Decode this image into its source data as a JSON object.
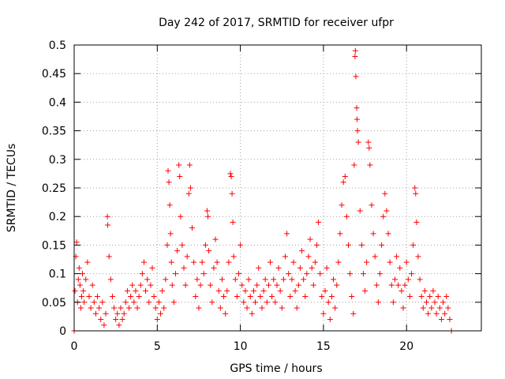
{
  "chart_data": {
    "type": "scatter",
    "title": "Day 242 of 2017, SRMTID for receiver ufpr",
    "xlabel": "GPS time / hours",
    "ylabel": "SRMTID / TECUs",
    "xlim": [
      0,
      24.5
    ],
    "ylim": [
      0,
      0.5
    ],
    "x_ticks": [
      0,
      5,
      10,
      15,
      20
    ],
    "x_tick_labels": [
      "0",
      "5",
      "10",
      "15",
      "20"
    ],
    "y_ticks": [
      0,
      0.05,
      0.1,
      0.15,
      0.2,
      0.25,
      0.3,
      0.35,
      0.4,
      0.45,
      0.5
    ],
    "y_tick_labels": [
      "0",
      "0.05",
      "0.1",
      "0.15",
      "0.2",
      "0.25",
      "0.3",
      "0.35",
      "0.4",
      "0.45",
      "0.5"
    ],
    "grid": true,
    "marker": "+",
    "marker_color": "#ff0000",
    "series": [
      {
        "name": "SRMTID",
        "points": [
          [
            0.0,
            0.0
          ],
          [
            0.05,
            0.07
          ],
          [
            0.1,
            0.13
          ],
          [
            0.15,
            0.155
          ],
          [
            0.2,
            0.05
          ],
          [
            0.25,
            0.09
          ],
          [
            0.3,
            0.11
          ],
          [
            0.35,
            0.08
          ],
          [
            0.4,
            0.04
          ],
          [
            0.45,
            0.06
          ],
          [
            0.5,
            0.1
          ],
          [
            0.55,
            0.07
          ],
          [
            0.6,
            0.05
          ],
          [
            0.7,
            0.09
          ],
          [
            0.8,
            0.12
          ],
          [
            0.9,
            0.06
          ],
          [
            1.0,
            0.04
          ],
          [
            1.1,
            0.08
          ],
          [
            1.2,
            0.05
          ],
          [
            1.3,
            0.03
          ],
          [
            1.4,
            0.06
          ],
          [
            1.5,
            0.04
          ],
          [
            1.6,
            0.02
          ],
          [
            1.7,
            0.05
          ],
          [
            1.8,
            0.01
          ],
          [
            1.9,
            0.03
          ],
          [
            2.0,
            0.2
          ],
          [
            2.02,
            0.185
          ],
          [
            2.1,
            0.13
          ],
          [
            2.2,
            0.09
          ],
          [
            2.3,
            0.06
          ],
          [
            2.4,
            0.04
          ],
          [
            2.5,
            0.02
          ],
          [
            2.6,
            0.03
          ],
          [
            2.7,
            0.01
          ],
          [
            2.8,
            0.04
          ],
          [
            2.9,
            0.02
          ],
          [
            3.0,
            0.03
          ],
          [
            3.1,
            0.05
          ],
          [
            3.2,
            0.07
          ],
          [
            3.3,
            0.04
          ],
          [
            3.4,
            0.06
          ],
          [
            3.5,
            0.08
          ],
          [
            3.6,
            0.05
          ],
          [
            3.7,
            0.07
          ],
          [
            3.8,
            0.04
          ],
          [
            3.9,
            0.06
          ],
          [
            4.0,
            0.08
          ],
          [
            4.1,
            0.1
          ],
          [
            4.2,
            0.12
          ],
          [
            4.3,
            0.07
          ],
          [
            4.4,
            0.09
          ],
          [
            4.5,
            0.05
          ],
          [
            4.6,
            0.08
          ],
          [
            4.7,
            0.11
          ],
          [
            4.8,
            0.06
          ],
          [
            4.9,
            0.04
          ],
          [
            5.0,
            0.02
          ],
          [
            5.1,
            0.05
          ],
          [
            5.2,
            0.03
          ],
          [
            5.3,
            0.07
          ],
          [
            5.4,
            0.04
          ],
          [
            5.5,
            0.09
          ],
          [
            5.6,
            0.15
          ],
          [
            5.65,
            0.28
          ],
          [
            5.7,
            0.26
          ],
          [
            5.75,
            0.22
          ],
          [
            5.8,
            0.17
          ],
          [
            5.85,
            0.12
          ],
          [
            5.9,
            0.08
          ],
          [
            6.0,
            0.05
          ],
          [
            6.1,
            0.1
          ],
          [
            6.2,
            0.14
          ],
          [
            6.3,
            0.29
          ],
          [
            6.35,
            0.27
          ],
          [
            6.4,
            0.2
          ],
          [
            6.5,
            0.15
          ],
          [
            6.6,
            0.11
          ],
          [
            6.7,
            0.08
          ],
          [
            6.8,
            0.13
          ],
          [
            6.9,
            0.24
          ],
          [
            6.95,
            0.29
          ],
          [
            7.0,
            0.25
          ],
          [
            7.1,
            0.18
          ],
          [
            7.2,
            0.12
          ],
          [
            7.3,
            0.06
          ],
          [
            7.4,
            0.09
          ],
          [
            7.5,
            0.04
          ],
          [
            7.6,
            0.08
          ],
          [
            7.7,
            0.12
          ],
          [
            7.8,
            0.1
          ],
          [
            7.9,
            0.15
          ],
          [
            8.0,
            0.21
          ],
          [
            8.05,
            0.2
          ],
          [
            8.1,
            0.14
          ],
          [
            8.2,
            0.08
          ],
          [
            8.3,
            0.05
          ],
          [
            8.4,
            0.11
          ],
          [
            8.5,
            0.16
          ],
          [
            8.6,
            0.12
          ],
          [
            8.7,
            0.07
          ],
          [
            8.8,
            0.04
          ],
          [
            8.9,
            0.09
          ],
          [
            9.0,
            0.06
          ],
          [
            9.1,
            0.03
          ],
          [
            9.2,
            0.07
          ],
          [
            9.3,
            0.12
          ],
          [
            9.4,
            0.275
          ],
          [
            9.45,
            0.27
          ],
          [
            9.5,
            0.24
          ],
          [
            9.55,
            0.19
          ],
          [
            9.6,
            0.13
          ],
          [
            9.7,
            0.09
          ],
          [
            9.8,
            0.06
          ],
          [
            9.9,
            0.1
          ],
          [
            10.0,
            0.15
          ],
          [
            10.1,
            0.08
          ],
          [
            10.2,
            0.05
          ],
          [
            10.3,
            0.07
          ],
          [
            10.4,
            0.04
          ],
          [
            10.5,
            0.09
          ],
          [
            10.6,
            0.06
          ],
          [
            10.7,
            0.03
          ],
          [
            10.8,
            0.07
          ],
          [
            10.9,
            0.05
          ],
          [
            11.0,
            0.08
          ],
          [
            11.1,
            0.11
          ],
          [
            11.2,
            0.06
          ],
          [
            11.3,
            0.04
          ],
          [
            11.4,
            0.07
          ],
          [
            11.5,
            0.09
          ],
          [
            11.6,
            0.05
          ],
          [
            11.7,
            0.08
          ],
          [
            11.8,
            0.12
          ],
          [
            11.9,
            0.06
          ],
          [
            12.0,
            0.09
          ],
          [
            12.1,
            0.05
          ],
          [
            12.2,
            0.08
          ],
          [
            12.3,
            0.11
          ],
          [
            12.4,
            0.07
          ],
          [
            12.5,
            0.04
          ],
          [
            12.6,
            0.09
          ],
          [
            12.7,
            0.13
          ],
          [
            12.8,
            0.17
          ],
          [
            12.9,
            0.1
          ],
          [
            13.0,
            0.06
          ],
          [
            13.1,
            0.09
          ],
          [
            13.2,
            0.12
          ],
          [
            13.3,
            0.07
          ],
          [
            13.4,
            0.04
          ],
          [
            13.5,
            0.08
          ],
          [
            13.6,
            0.11
          ],
          [
            13.7,
            0.14
          ],
          [
            13.8,
            0.09
          ],
          [
            13.9,
            0.06
          ],
          [
            14.0,
            0.1
          ],
          [
            14.1,
            0.13
          ],
          [
            14.2,
            0.16
          ],
          [
            14.3,
            0.11
          ],
          [
            14.4,
            0.08
          ],
          [
            14.5,
            0.12
          ],
          [
            14.6,
            0.15
          ],
          [
            14.7,
            0.19
          ],
          [
            14.8,
            0.1
          ],
          [
            14.9,
            0.06
          ],
          [
            15.0,
            0.03
          ],
          [
            15.1,
            0.07
          ],
          [
            15.2,
            0.11
          ],
          [
            15.3,
            0.05
          ],
          [
            15.4,
            0.02
          ],
          [
            15.5,
            0.06
          ],
          [
            15.6,
            0.09
          ],
          [
            15.7,
            0.04
          ],
          [
            15.8,
            0.08
          ],
          [
            15.9,
            0.12
          ],
          [
            16.0,
            0.17
          ],
          [
            16.1,
            0.22
          ],
          [
            16.2,
            0.26
          ],
          [
            16.3,
            0.27
          ],
          [
            16.4,
            0.2
          ],
          [
            16.5,
            0.15
          ],
          [
            16.6,
            0.1
          ],
          [
            16.7,
            0.06
          ],
          [
            16.8,
            0.03
          ],
          [
            16.85,
            0.29
          ],
          [
            16.9,
            0.48
          ],
          [
            16.92,
            0.49
          ],
          [
            16.95,
            0.445
          ],
          [
            17.0,
            0.39
          ],
          [
            17.02,
            0.37
          ],
          [
            17.05,
            0.35
          ],
          [
            17.1,
            0.33
          ],
          [
            17.2,
            0.21
          ],
          [
            17.3,
            0.15
          ],
          [
            17.4,
            0.1
          ],
          [
            17.5,
            0.07
          ],
          [
            17.6,
            0.12
          ],
          [
            17.7,
            0.33
          ],
          [
            17.75,
            0.32
          ],
          [
            17.8,
            0.29
          ],
          [
            17.9,
            0.22
          ],
          [
            18.0,
            0.17
          ],
          [
            18.1,
            0.13
          ],
          [
            18.2,
            0.08
          ],
          [
            18.3,
            0.05
          ],
          [
            18.4,
            0.1
          ],
          [
            18.5,
            0.15
          ],
          [
            18.6,
            0.2
          ],
          [
            18.7,
            0.24
          ],
          [
            18.8,
            0.21
          ],
          [
            18.9,
            0.17
          ],
          [
            19.0,
            0.12
          ],
          [
            19.1,
            0.08
          ],
          [
            19.2,
            0.05
          ],
          [
            19.3,
            0.09
          ],
          [
            19.4,
            0.13
          ],
          [
            19.5,
            0.08
          ],
          [
            19.6,
            0.11
          ],
          [
            19.7,
            0.07
          ],
          [
            19.8,
            0.04
          ],
          [
            19.9,
            0.08
          ],
          [
            20.0,
            0.12
          ],
          [
            20.1,
            0.09
          ],
          [
            20.2,
            0.06
          ],
          [
            20.3,
            0.1
          ],
          [
            20.4,
            0.15
          ],
          [
            20.5,
            0.25
          ],
          [
            20.55,
            0.24
          ],
          [
            20.6,
            0.19
          ],
          [
            20.7,
            0.13
          ],
          [
            20.8,
            0.09
          ],
          [
            20.9,
            0.06
          ],
          [
            21.0,
            0.04
          ],
          [
            21.1,
            0.07
          ],
          [
            21.2,
            0.05
          ],
          [
            21.3,
            0.03
          ],
          [
            21.4,
            0.06
          ],
          [
            21.5,
            0.04
          ],
          [
            21.6,
            0.07
          ],
          [
            21.7,
            0.05
          ],
          [
            21.8,
            0.03
          ],
          [
            21.9,
            0.06
          ],
          [
            22.0,
            0.04
          ],
          [
            22.1,
            0.02
          ],
          [
            22.2,
            0.05
          ],
          [
            22.3,
            0.03
          ],
          [
            22.4,
            0.06
          ],
          [
            22.5,
            0.04
          ],
          [
            22.6,
            0.02
          ],
          [
            22.7,
            0.0
          ]
        ]
      }
    ]
  }
}
